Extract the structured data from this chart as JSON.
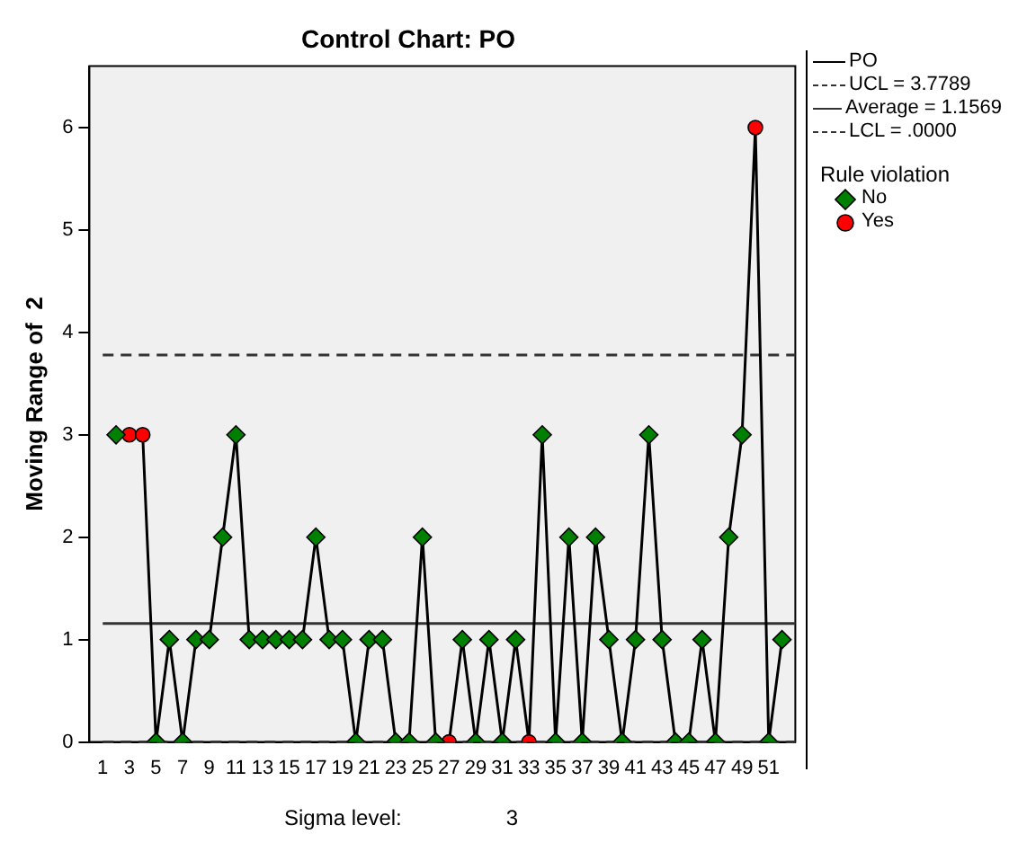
{
  "chart_data": {
    "type": "line",
    "title": "Control Chart: PO",
    "xlabel": "Sigma level:",
    "ylabel": "Moving Range of  2",
    "legend_title": "Rule violation",
    "annotations": [
      "3"
    ],
    "xlim": [
      0,
      53
    ],
    "xticks": [
      1,
      3,
      5,
      7,
      9,
      11,
      13,
      15,
      17,
      19,
      21,
      23,
      25,
      27,
      29,
      31,
      33,
      35,
      37,
      39,
      41,
      43,
      45,
      47,
      49,
      51
    ],
    "ylim": [
      0,
      6.6
    ],
    "yticks": [
      0,
      1,
      2,
      3,
      4,
      5,
      6
    ],
    "grid": false,
    "legend": "right",
    "series": [
      {
        "name": "PO",
        "color": "#000000",
        "marker": "none",
        "line_style": "solid",
        "x": [
          2,
          3,
          4,
          5,
          6,
          7,
          8,
          9,
          10,
          11,
          12,
          13,
          14,
          15,
          16,
          17,
          18,
          19,
          20,
          21,
          22,
          23,
          24,
          25,
          26,
          27,
          28,
          29,
          30,
          31,
          32,
          33,
          34,
          35,
          36,
          37,
          38,
          39,
          40,
          41,
          42,
          43,
          44,
          45,
          46,
          47,
          48,
          49,
          50,
          51,
          52
        ],
        "values": [
          3,
          3,
          3,
          0,
          1,
          0,
          1,
          1,
          2,
          3,
          1,
          1,
          1,
          1,
          1,
          2,
          1,
          1,
          0,
          1,
          1,
          0,
          0,
          2,
          0,
          0,
          1,
          0,
          1,
          0,
          1,
          0,
          3,
          0,
          2,
          0,
          2,
          1,
          0,
          1,
          3,
          1,
          0,
          0,
          1,
          0,
          2,
          3,
          6,
          0,
          1
        ]
      },
      {
        "name": "No",
        "type": "scatter",
        "color": "#008000",
        "marker": "diamond",
        "x": [
          2,
          5,
          6,
          7,
          8,
          9,
          10,
          11,
          12,
          13,
          14,
          15,
          16,
          17,
          18,
          19,
          20,
          21,
          22,
          23,
          24,
          25,
          26,
          28,
          29,
          30,
          31,
          32,
          34,
          35,
          36,
          37,
          38,
          39,
          40,
          41,
          42,
          43,
          44,
          45,
          46,
          47,
          48,
          49,
          51,
          52
        ],
        "values": [
          3,
          0,
          1,
          0,
          1,
          1,
          2,
          3,
          1,
          1,
          1,
          1,
          1,
          2,
          1,
          1,
          0,
          1,
          1,
          0,
          0,
          2,
          0,
          1,
          0,
          1,
          0,
          1,
          3,
          0,
          2,
          0,
          2,
          1,
          0,
          1,
          3,
          1,
          0,
          0,
          1,
          0,
          2,
          3,
          0,
          1
        ]
      },
      {
        "name": "Yes",
        "type": "scatter",
        "color": "#ff0000",
        "marker": "circle",
        "x": [
          3,
          4,
          27,
          33,
          50
        ],
        "values": [
          3,
          3,
          0,
          0,
          6
        ]
      }
    ],
    "ref_lines": [
      {
        "axis": "y",
        "value": 3.7789,
        "label": "UCL = 3.7789",
        "line_style": "dashed",
        "color": "#333333"
      },
      {
        "axis": "y",
        "value": 1.1569,
        "label": "Average = 1.1569",
        "line_style": "solid",
        "color": "#333333"
      },
      {
        "axis": "y",
        "value": 0,
        "label": "LCL = .0000",
        "line_style": "dashed",
        "color": "#333333"
      }
    ]
  }
}
